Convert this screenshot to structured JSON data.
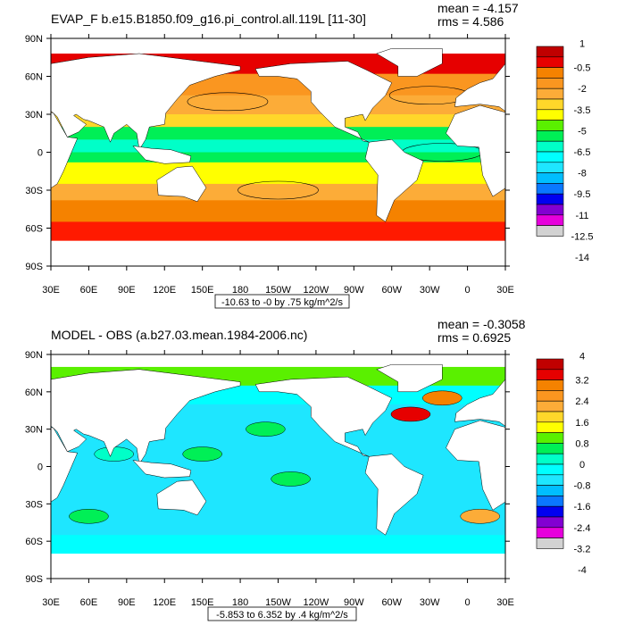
{
  "lat_ticks": [
    "90N",
    "60N",
    "30N",
    "0",
    "30S",
    "60S",
    "90S"
  ],
  "lon_ticks": [
    "30E",
    "60E",
    "90E",
    "120E",
    "150E",
    "180",
    "150W",
    "120W",
    "90W",
    "60W",
    "30W",
    "0",
    "30E"
  ],
  "plots": [
    {
      "title": "EVAP_F b.e15.B1850.f09_g16.pi_control.all.119L [11-30]",
      "mean": "mean = -4.157",
      "rms": "rms = 4.586",
      "range_label": "-10.63 to -0 by .75 kg/m^2/s",
      "colorbar_labels": [
        "1",
        "-0.5",
        "-2",
        "-3.5",
        "-5",
        "-6.5",
        "-8",
        "-9.5",
        "-11",
        "-12.5",
        "-14"
      ]
    },
    {
      "title": "MODEL - OBS (a.b27.03.mean.1984-2006.nc)",
      "mean": "mean = -0.3058",
      "rms": "rms = 0.6925",
      "range_label": "-5.853 to 6.352 by .4 kg/m^2/s",
      "colorbar_labels": [
        "4",
        "3.2",
        "2.4",
        "1.6",
        "0.8",
        "0",
        "-0.8",
        "-1.6",
        "-2.4",
        "-3.2",
        "-4"
      ]
    }
  ],
  "colorbar_colors": [
    "#c00000",
    "#e60000",
    "#ff1a00",
    "#f58200",
    "#fa9620",
    "#fcac38",
    "#ffd72a",
    "#ffff00",
    "#5af000",
    "#00ef56",
    "#00ffc8",
    "#00ffff",
    "#1ee6ff",
    "#00beff",
    "#0a78ff",
    "#0000f0",
    "#8200d2",
    "#e600dc",
    "#d2d2d2",
    "#6e6e6e"
  ]
}
